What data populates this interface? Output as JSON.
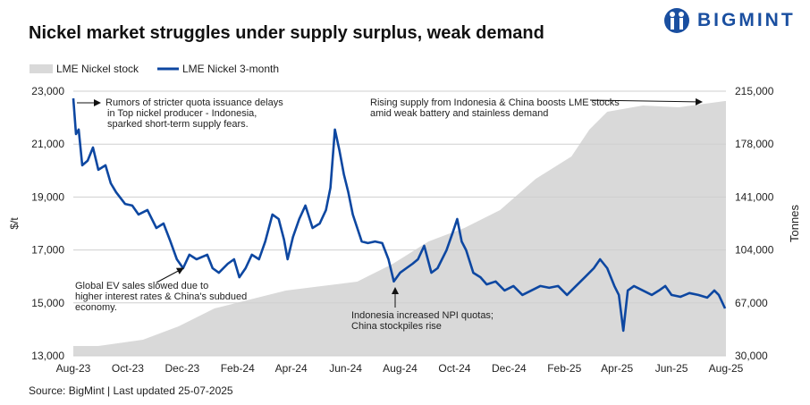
{
  "title": "Nickel market struggles under supply surplus, weak demand",
  "logo": {
    "text": "BIGMINT",
    "color": "#1a4fa0"
  },
  "source": "Source: BigMint | Last updated 25-07-2025",
  "chart_data": {
    "type": "line+area",
    "legend": [
      "LME Nickel stock",
      "LME Nickel 3-month"
    ],
    "legend_placement": "top-left",
    "ylabel_left": "$/t",
    "ylabel_right": "Tonnes",
    "ylim_left": [
      13000,
      23000
    ],
    "yticks_left": [
      "13,000",
      "15,000",
      "17,000",
      "19,000",
      "21,000",
      "23,000"
    ],
    "ylim_right": [
      30000,
      215000
    ],
    "yticks_right": [
      "30,000",
      "67,000",
      "104,000",
      "141,000",
      "178,000",
      "215,000"
    ],
    "xlim": [
      "2023-08-01",
      "2025-08-01"
    ],
    "xticks": [
      [
        "2023-08-01",
        "Aug-23"
      ],
      [
        "2023-10-01",
        "Oct-23"
      ],
      [
        "2023-12-01",
        "Dec-23"
      ],
      [
        "2024-02-01",
        "Feb-24"
      ],
      [
        "2024-04-01",
        "Apr-24"
      ],
      [
        "2024-06-01",
        "Jun-24"
      ],
      [
        "2024-08-01",
        "Aug-24"
      ],
      [
        "2024-10-01",
        "Oct-24"
      ],
      [
        "2024-12-01",
        "Dec-24"
      ],
      [
        "2025-02-01",
        "Feb-25"
      ],
      [
        "2025-04-01",
        "Apr-25"
      ],
      [
        "2025-06-01",
        "Jun-25"
      ],
      [
        "2025-08-01",
        "Aug-25"
      ]
    ],
    "grid": "horizontal",
    "colors": {
      "price": "#0d47a1",
      "stock": "#d9d9d9"
    },
    "stock": [
      [
        "2023-08-01",
        36900
      ],
      [
        "2023-08-29",
        36900
      ],
      [
        "2023-10-18",
        41250
      ],
      [
        "2023-11-27",
        50600
      ],
      [
        "2024-01-06",
        63100
      ],
      [
        "2024-02-15",
        69400
      ],
      [
        "2024-03-26",
        75600
      ],
      [
        "2024-05-05",
        78750
      ],
      [
        "2024-06-14",
        81900
      ],
      [
        "2024-07-24",
        94400
      ],
      [
        "2024-09-02",
        110000
      ],
      [
        "2024-10-12",
        119400
      ],
      [
        "2024-11-21",
        131900
      ],
      [
        "2024-12-31",
        153750
      ],
      [
        "2025-02-09",
        169400
      ],
      [
        "2025-03-01",
        188100
      ],
      [
        "2025-03-21",
        200600
      ],
      [
        "2025-04-30",
        205000
      ],
      [
        "2025-06-09",
        203750
      ],
      [
        "2025-07-01",
        205600
      ],
      [
        "2025-07-31",
        208100
      ]
    ],
    "price": [
      [
        "2023-08-01",
        22730
      ],
      [
        "2023-08-04",
        21380
      ],
      [
        "2023-08-07",
        21550
      ],
      [
        "2023-08-11",
        20200
      ],
      [
        "2023-08-17",
        20370
      ],
      [
        "2023-08-23",
        20870
      ],
      [
        "2023-08-29",
        20030
      ],
      [
        "2023-09-06",
        20200
      ],
      [
        "2023-09-12",
        19520
      ],
      [
        "2023-09-18",
        19180
      ],
      [
        "2023-09-28",
        18740
      ],
      [
        "2023-10-06",
        18680
      ],
      [
        "2023-10-13",
        18340
      ],
      [
        "2023-10-23",
        18510
      ],
      [
        "2023-11-02",
        17830
      ],
      [
        "2023-11-10",
        18000
      ],
      [
        "2023-11-17",
        17390
      ],
      [
        "2023-11-25",
        16650
      ],
      [
        "2023-12-02",
        16310
      ],
      [
        "2023-12-09",
        16820
      ],
      [
        "2023-12-17",
        16650
      ],
      [
        "2023-12-29",
        16820
      ],
      [
        "2024-01-04",
        16310
      ],
      [
        "2024-01-11",
        16140
      ],
      [
        "2024-01-21",
        16480
      ],
      [
        "2024-01-28",
        16650
      ],
      [
        "2024-02-03",
        15970
      ],
      [
        "2024-02-10",
        16310
      ],
      [
        "2024-02-17",
        16820
      ],
      [
        "2024-02-25",
        16650
      ],
      [
        "2024-03-03",
        17320
      ],
      [
        "2024-03-11",
        18340
      ],
      [
        "2024-03-18",
        18170
      ],
      [
        "2024-03-24",
        17390
      ],
      [
        "2024-03-28",
        16650
      ],
      [
        "2024-04-03",
        17490
      ],
      [
        "2024-04-10",
        18170
      ],
      [
        "2024-04-17",
        18680
      ],
      [
        "2024-04-25",
        17830
      ],
      [
        "2024-05-03",
        18000
      ],
      [
        "2024-05-10",
        18510
      ],
      [
        "2024-05-15",
        19350
      ],
      [
        "2024-05-20",
        21550
      ],
      [
        "2024-05-25",
        20770
      ],
      [
        "2024-05-30",
        19860
      ],
      [
        "2024-06-04",
        19180
      ],
      [
        "2024-06-09",
        18340
      ],
      [
        "2024-06-14",
        17830
      ],
      [
        "2024-06-19",
        17320
      ],
      [
        "2024-06-26",
        17260
      ],
      [
        "2024-07-04",
        17320
      ],
      [
        "2024-07-12",
        17260
      ],
      [
        "2024-07-19",
        16650
      ],
      [
        "2024-07-25",
        15810
      ],
      [
        "2024-08-01",
        16140
      ],
      [
        "2024-08-08",
        16310
      ],
      [
        "2024-08-15",
        16480
      ],
      [
        "2024-08-21",
        16650
      ],
      [
        "2024-08-28",
        17160
      ],
      [
        "2024-09-05",
        16140
      ],
      [
        "2024-09-12",
        16310
      ],
      [
        "2024-09-22",
        16990
      ],
      [
        "2024-09-29",
        17660
      ],
      [
        "2024-10-04",
        18170
      ],
      [
        "2024-10-09",
        17320
      ],
      [
        "2024-10-14",
        16990
      ],
      [
        "2024-10-22",
        16140
      ],
      [
        "2024-10-30",
        15970
      ],
      [
        "2024-11-06",
        15700
      ],
      [
        "2024-11-16",
        15810
      ],
      [
        "2024-11-26",
        15470
      ],
      [
        "2024-12-06",
        15640
      ],
      [
        "2024-12-16",
        15300
      ],
      [
        "2024-12-26",
        15470
      ],
      [
        "2025-01-05",
        15640
      ],
      [
        "2025-01-15",
        15570
      ],
      [
        "2025-01-25",
        15640
      ],
      [
        "2025-02-04",
        15300
      ],
      [
        "2025-02-14",
        15640
      ],
      [
        "2025-02-24",
        15970
      ],
      [
        "2025-03-06",
        16310
      ],
      [
        "2025-03-13",
        16650
      ],
      [
        "2025-03-21",
        16310
      ],
      [
        "2025-03-29",
        15640
      ],
      [
        "2025-04-03",
        15300
      ],
      [
        "2025-04-08",
        13950
      ],
      [
        "2025-04-13",
        15470
      ],
      [
        "2025-04-20",
        15640
      ],
      [
        "2025-04-30",
        15470
      ],
      [
        "2025-05-10",
        15300
      ],
      [
        "2025-05-18",
        15470
      ],
      [
        "2025-05-25",
        15640
      ],
      [
        "2025-06-01",
        15300
      ],
      [
        "2025-06-11",
        15230
      ],
      [
        "2025-06-21",
        15370
      ],
      [
        "2025-07-01",
        15300
      ],
      [
        "2025-07-11",
        15200
      ],
      [
        "2025-07-19",
        15470
      ],
      [
        "2025-07-24",
        15300
      ],
      [
        "2025-07-31",
        14790
      ]
    ],
    "annotations": [
      {
        "lines": [
          "Rumors of stricter quota issuance delays",
          "in Top nickel producer - Indonesia,",
          "sparked short-term supply fears."
        ]
      },
      {
        "lines": [
          "Rising supply from Indonesia & China boosts LME stocks",
          "amid weak battery and stainless demand"
        ]
      },
      {
        "lines": [
          "Global EV sales slowed due to",
          "higher interest rates & China's subdued",
          "economy."
        ]
      },
      {
        "lines": [
          "Indonesia increased NPI quotas;",
          "China stockpiles rise"
        ]
      }
    ]
  }
}
